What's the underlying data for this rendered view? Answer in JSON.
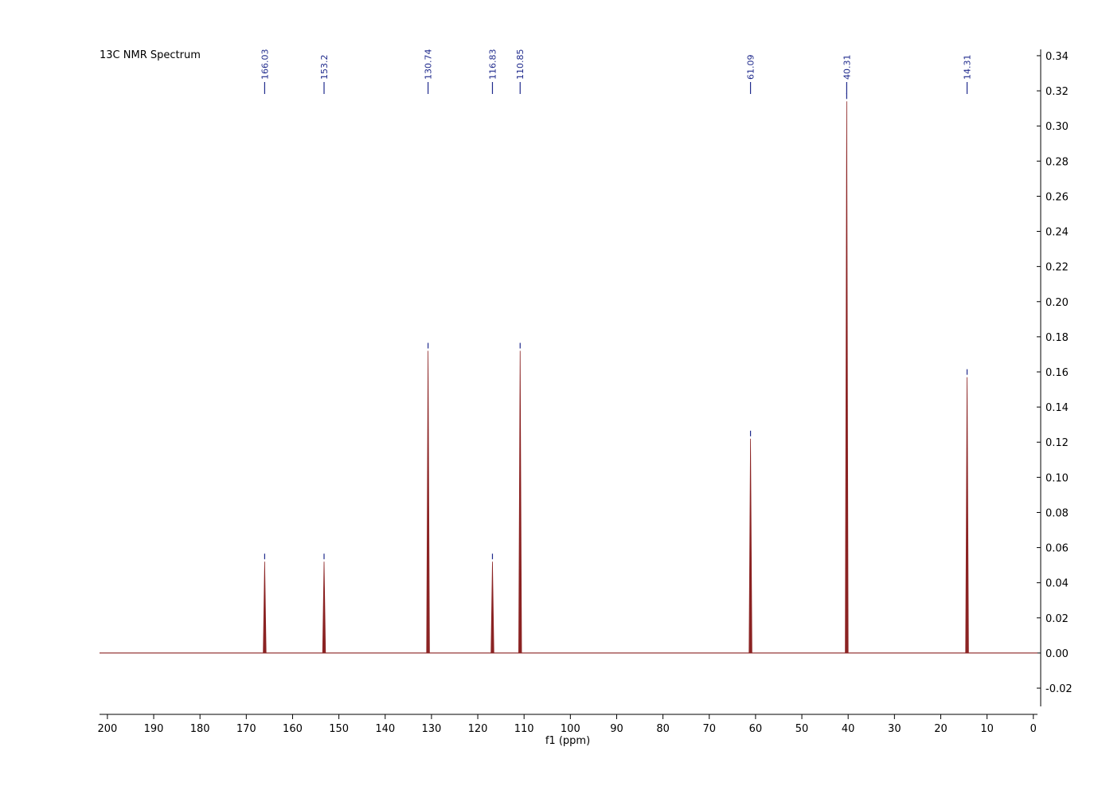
{
  "chart_data": {
    "type": "nmr-peaks",
    "title": "13C NMR Spectrum",
    "x_label": "f1 (ppm)",
    "series": [
      {
        "name": "13C",
        "color": "#8b2323",
        "x": [
          166.03,
          153.2,
          130.74,
          116.83,
          110.85,
          61.09,
          40.31,
          14.31
        ],
        "values": [
          0.052,
          0.052,
          0.172,
          0.052,
          0.172,
          0.122,
          0.314,
          0.157
        ]
      }
    ],
    "peak_label_color": "#1f2a8c",
    "xlim": [
      201.7,
      -0.9
    ],
    "xticks": [
      200,
      190,
      180,
      170,
      160,
      150,
      140,
      130,
      120,
      110,
      100,
      90,
      80,
      70,
      60,
      50,
      40,
      30,
      20,
      10,
      0
    ],
    "ylim": [
      -0.0304,
      0.3436
    ],
    "yticks": [
      {
        "value": -0.02,
        "label": "-0.02"
      },
      {
        "value": 0,
        "label": "0.00"
      },
      {
        "value": 0.02,
        "label": "0.02"
      },
      {
        "value": 0.04,
        "label": "0.04"
      },
      {
        "value": 0.06,
        "label": "0.06"
      },
      {
        "value": 0.08,
        "label": "0.08"
      },
      {
        "value": 0.1,
        "label": "0.10"
      },
      {
        "value": 0.12,
        "label": "0.12"
      },
      {
        "value": 0.14,
        "label": "0.14"
      },
      {
        "value": 0.16,
        "label": "0.16"
      },
      {
        "value": 0.18,
        "label": "0.18"
      },
      {
        "value": 0.2,
        "label": "0.20"
      },
      {
        "value": 0.22,
        "label": "0.22"
      },
      {
        "value": 0.24,
        "label": "0.24"
      },
      {
        "value": 0.26,
        "label": "0.26"
      },
      {
        "value": 0.28,
        "label": "0.28"
      },
      {
        "value": 0.3,
        "label": "0.30"
      },
      {
        "value": 0.32,
        "label": "0.32"
      },
      {
        "value": 0.34,
        "label": "0.34"
      }
    ]
  }
}
